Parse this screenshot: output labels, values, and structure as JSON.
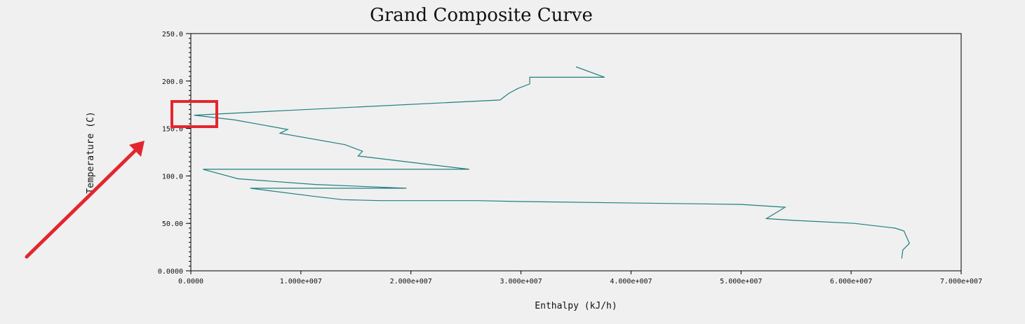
{
  "chart_data": {
    "type": "line",
    "title": "Grand Composite Curve",
    "xlabel": "Enthalpy (kJ/h)",
    "ylabel": "Temperature (C)",
    "xlim": [
      0,
      70000000
    ],
    "ylim": [
      0,
      250
    ],
    "x_tick_labels": [
      "0.0000",
      "1.000e+007",
      "2.000e+007",
      "3.000e+007",
      "4.000e+007",
      "5.000e+007",
      "6.000e+007",
      "7.000e+007"
    ],
    "y_tick_labels": [
      "0.0000",
      "50.00",
      "100.0",
      "150.0",
      "200.0",
      "250.0"
    ],
    "grid": false,
    "series": [
      {
        "color": "#1f7f80",
        "points": [
          [
            35000000,
            215
          ],
          [
            37600000,
            204
          ],
          [
            30800000,
            204
          ],
          [
            30800000,
            197
          ],
          [
            29700000,
            192
          ],
          [
            28900000,
            187
          ],
          [
            28100000,
            180
          ],
          [
            8800000,
            169
          ],
          [
            300000,
            164
          ],
          [
            4000000,
            159
          ],
          [
            8800000,
            149
          ],
          [
            8100000,
            145
          ],
          [
            14000000,
            133
          ],
          [
            15600000,
            126
          ],
          [
            15200000,
            121
          ],
          [
            25300000,
            107
          ],
          [
            1100000,
            107
          ],
          [
            4300000,
            97
          ],
          [
            11300000,
            91
          ],
          [
            19600000,
            87
          ],
          [
            5400000,
            87
          ],
          [
            11500000,
            78
          ],
          [
            13800000,
            75
          ],
          [
            17200000,
            74
          ],
          [
            26000000,
            74
          ],
          [
            30000000,
            73
          ],
          [
            50000000,
            70
          ],
          [
            54000000,
            67
          ],
          [
            52300000,
            55
          ],
          [
            55000000,
            53
          ],
          [
            60300000,
            50
          ],
          [
            64000000,
            45
          ],
          [
            64800000,
            42
          ],
          [
            65300000,
            29
          ],
          [
            64700000,
            22
          ],
          [
            64600000,
            13
          ]
        ]
      }
    ]
  },
  "annotation": {
    "box_color": "#e3262e",
    "arrow_color": "#e3262e"
  }
}
